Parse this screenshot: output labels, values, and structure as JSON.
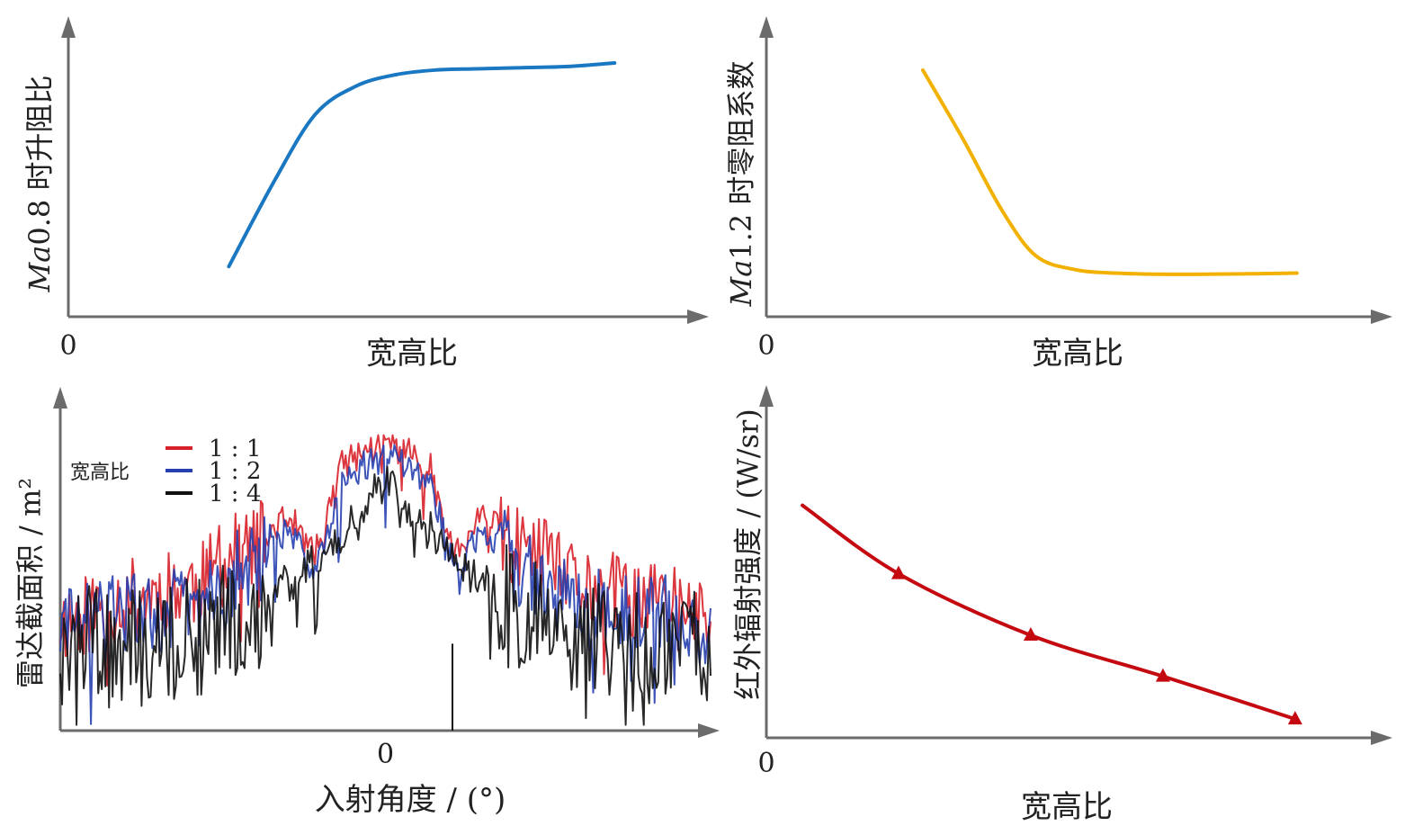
{
  "chart_data": [
    {
      "type": "line",
      "xlabel": "宽高比",
      "ylabel": "Ma0.8 时升阻比",
      "ylabel_var": "Ma",
      "ylabel_rest": "0.8 时升阻比",
      "origin_label": "0",
      "xlim": [
        0,
        1
      ],
      "ylim": [
        0,
        1
      ],
      "series": [
        {
          "color": "#1a78c2",
          "x": [
            0.21,
            0.29,
            0.36,
            0.43,
            0.5,
            0.57,
            0.64,
            0.72,
            0.8,
            0.88
          ],
          "y": [
            0.13,
            0.5,
            0.78,
            0.9,
            0.95,
            0.97,
            0.975,
            0.98,
            0.985,
            1.0
          ]
        }
      ]
    },
    {
      "type": "line",
      "xlabel": "宽高比",
      "ylabel": "Ma1.2 时零阻系数",
      "ylabel_var": "Ma",
      "ylabel_rest": "1.2 时零阻系数",
      "origin_label": "0",
      "xlim": [
        0,
        1
      ],
      "ylim": [
        0,
        1
      ],
      "series": [
        {
          "color": "#f2b100",
          "x": [
            0.2,
            0.27,
            0.34,
            0.4,
            0.47,
            0.54,
            0.62,
            0.7,
            0.78,
            0.86
          ],
          "y": [
            1.0,
            0.7,
            0.38,
            0.18,
            0.12,
            0.105,
            0.1,
            0.1,
            0.102,
            0.105
          ]
        }
      ]
    },
    {
      "type": "line",
      "xlabel": "入射角度 / (°)",
      "ylabel": "雷达截面积 / m²",
      "x_tick_zero": "0",
      "legend_title": "宽高比",
      "legend_position": "top-left",
      "xlim": [
        -1,
        1
      ],
      "ylim": [
        0,
        1
      ],
      "series": [
        {
          "name": "1 : 1",
          "color": "#d8202a",
          "x": [
            -1.0,
            -0.8,
            -0.6,
            -0.42,
            -0.3,
            -0.22,
            -0.12,
            -0.05,
            0.0,
            0.05,
            0.12,
            0.22,
            0.3,
            0.42,
            0.6,
            0.8,
            1.0
          ],
          "y": [
            0.38,
            0.45,
            0.5,
            0.62,
            0.73,
            0.62,
            0.93,
            0.97,
            1.0,
            0.97,
            0.93,
            0.62,
            0.73,
            0.62,
            0.5,
            0.45,
            0.38
          ]
        },
        {
          "name": "1 : 2",
          "color": "#2740b0",
          "x": [
            -1.0,
            -0.8,
            -0.6,
            -0.42,
            -0.3,
            -0.22,
            -0.12,
            -0.05,
            0.0,
            0.05,
            0.12,
            0.22,
            0.3,
            0.42,
            0.6,
            0.8,
            1.0
          ],
          "y": [
            0.35,
            0.4,
            0.43,
            0.56,
            0.68,
            0.57,
            0.88,
            0.92,
            0.96,
            0.92,
            0.88,
            0.57,
            0.68,
            0.56,
            0.43,
            0.4,
            0.35
          ]
        },
        {
          "name": "1 : 4",
          "color": "#111111",
          "x": [
            -1.0,
            -0.8,
            -0.6,
            -0.42,
            -0.3,
            -0.2,
            -0.1,
            0.0,
            0.1,
            0.2,
            0.3,
            0.42,
            0.6,
            0.8,
            1.0
          ],
          "y": [
            0.3,
            0.28,
            0.32,
            0.4,
            0.5,
            0.62,
            0.72,
            0.86,
            0.72,
            0.62,
            0.5,
            0.4,
            0.32,
            0.28,
            0.3
          ]
        }
      ]
    },
    {
      "type": "line",
      "xlabel": "宽高比",
      "ylabel": "红外辐射强度 / (W/sr)",
      "origin_label": "0",
      "xlim": [
        0,
        1
      ],
      "ylim": [
        0,
        1
      ],
      "series": [
        {
          "color": "#c40a10",
          "marker": "triangle",
          "x": [
            0.06,
            0.22,
            0.44,
            0.66,
            0.88
          ],
          "y": [
            0.68,
            0.48,
            0.3,
            0.18,
            0.055
          ],
          "marked_x": [
            0.22,
            0.44,
            0.66,
            0.88
          ]
        }
      ]
    }
  ]
}
